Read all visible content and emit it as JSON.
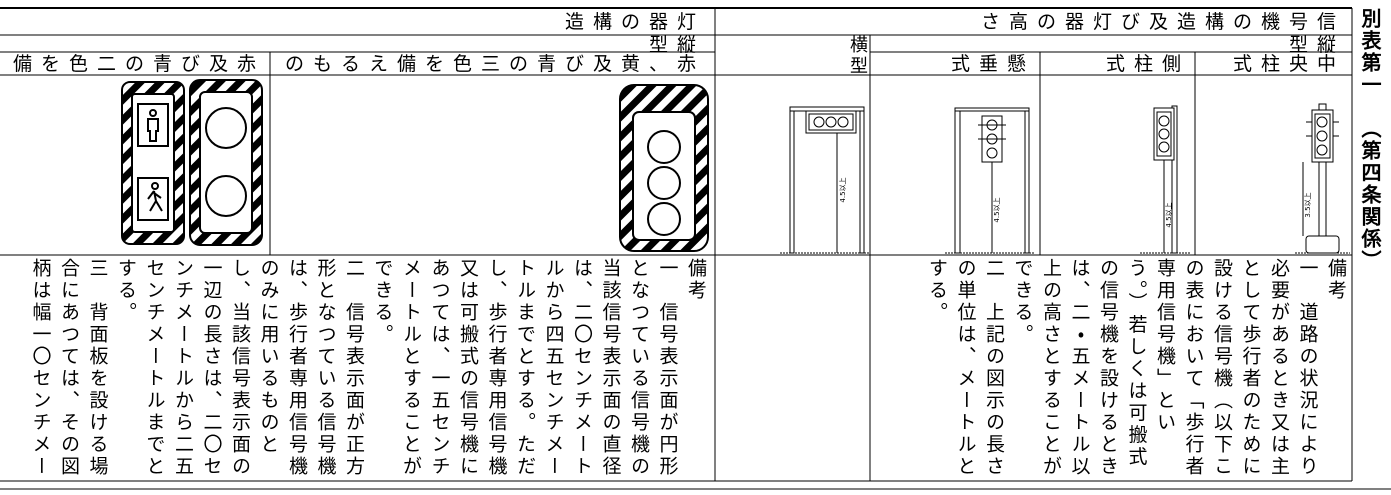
{
  "side_label": {
    "title": "別表第一",
    "subtitle": "（第四条関係）"
  },
  "signal_structure": {
    "title": "信号機の構造及び灯器の高さ",
    "vertical_type": "縦型",
    "horizontal_type": "横型",
    "horizontal_height": "4.5以上",
    "columns": [
      {
        "name": "中央柱式",
        "height": "3.5以上"
      },
      {
        "name": "側柱式",
        "height": "4.5以上"
      },
      {
        "name": "懸垂式",
        "height": "4.5以上"
      }
    ],
    "notes": {
      "title": "備考",
      "items": [
        "一　道路の状況により必要があるとき又は主として歩行者のために設ける信号機（以下この表において「歩行者専用信号機」という。）若しくは可搬式の信号機を設けるときは、二・五メートル以上の高さとすることができる。",
        "二　上記の図示の長さの単位は、メートルとする。"
      ]
    }
  },
  "lamp_structure": {
    "title": "灯器の構造",
    "vertical_type": "縦型",
    "columns": [
      "赤、黄及び青の三色を備えるもの",
      "赤及び青の二色を備"
    ],
    "notes": {
      "title": "備考",
      "items": [
        "一　信号表示面が円形となつている信号機の当該信号表示面の直径は、二〇センチメートルから四五センチメートルまでとする。ただし、歩行者専用信号機又は可搬式の信号機にあつては、一五センチメートルとすることができる。",
        "二　信号表示面が正方形となつている信号機は、歩行者専用信号機のみに用いるものとし、当該信号表示面の一辺の長さは、二〇センチメートルから二五センチメートルまでとする。",
        "三　背面板を設ける場合にあつては、その図柄は幅一〇センチメー"
      ]
    }
  }
}
